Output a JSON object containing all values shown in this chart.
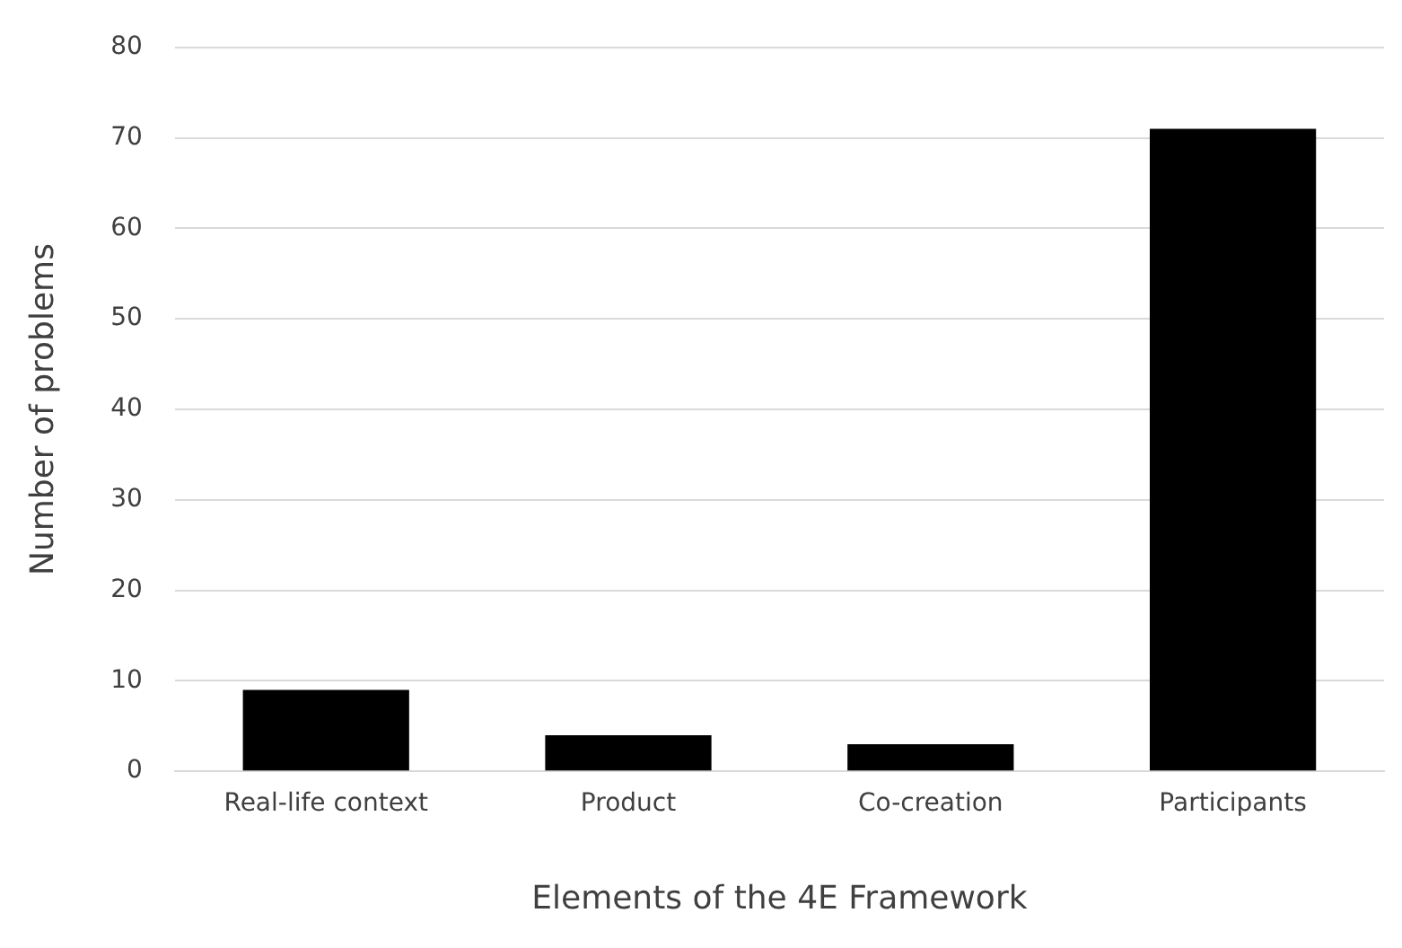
{
  "chart_data": {
    "type": "bar",
    "xlabel": "Elements of the 4E Framework",
    "ylabel": "Number of problems",
    "categories": [
      "Real-life context",
      "Product",
      "Co-creation",
      "Participants"
    ],
    "values": [
      9,
      4,
      3,
      71
    ],
    "color": "#000000",
    "ylim": [
      0,
      80
    ],
    "yticks": [
      0,
      10,
      20,
      30,
      40,
      50,
      60,
      70,
      80
    ],
    "grid": "y",
    "legend": false
  }
}
